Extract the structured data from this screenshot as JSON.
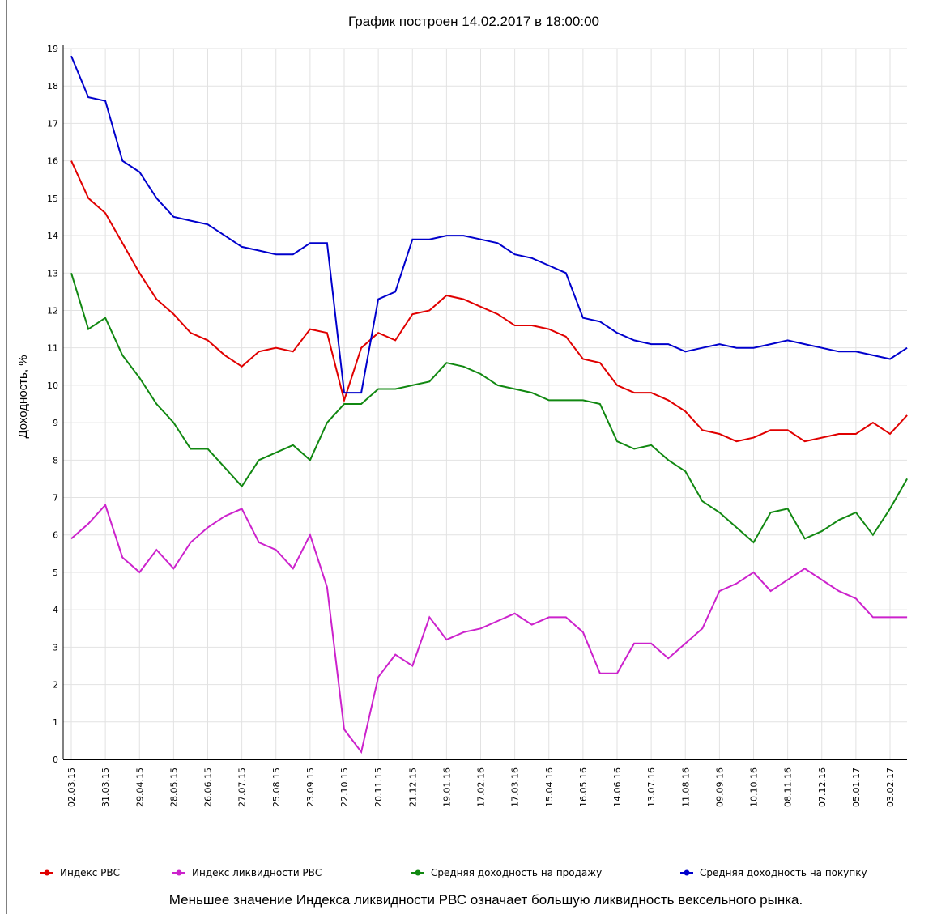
{
  "chart_data": {
    "type": "line",
    "subtitle": "График построен 14.02.2017 в 18:00:00",
    "y_label": "Доходность, %",
    "note": "Меньшее значение Индекса ликвидности РВС означает большую ликвидность вексельного рынка.",
    "categories": [
      "02.03.15",
      null,
      "31.03.15",
      null,
      "29.04.15",
      null,
      "28.05.15",
      null,
      "26.06.15",
      null,
      "27.07.15",
      null,
      "25.08.15",
      null,
      "23.09.15",
      null,
      "22.10.15",
      null,
      "20.11.15",
      null,
      "21.12.15",
      null,
      "19.01.16",
      null,
      "17.02.16",
      null,
      "17.03.16",
      null,
      "15.04.16",
      null,
      "16.05.16",
      null,
      "14.06.16",
      null,
      "13.07.16",
      null,
      "11.08.16",
      null,
      "09.09.16",
      null,
      "10.10.16",
      null,
      "08.11.16",
      null,
      "07.12.16",
      null,
      "05.01.17",
      null,
      "03.02.17",
      null
    ],
    "series": [
      {
        "name": "Индекс РВС",
        "color": "#e00000",
        "values": [
          16.0,
          15.0,
          14.6,
          13.8,
          13.0,
          12.3,
          11.9,
          11.4,
          11.2,
          10.8,
          10.5,
          10.9,
          11.0,
          10.9,
          11.5,
          11.4,
          9.6,
          11.0,
          11.4,
          11.2,
          11.9,
          12.0,
          12.4,
          12.3,
          12.1,
          11.9,
          11.6,
          11.6,
          11.5,
          11.3,
          10.7,
          10.6,
          10.0,
          9.8,
          9.8,
          9.6,
          9.3,
          8.8,
          8.7,
          8.5,
          8.6,
          8.8,
          8.8,
          8.5,
          8.6,
          8.7,
          8.7,
          9.0,
          8.7,
          9.2
        ]
      },
      {
        "name": "Индекс ликвидности РВС",
        "color": "#cc22cc",
        "values": [
          5.9,
          6.3,
          6.8,
          5.4,
          5.0,
          5.6,
          5.1,
          5.8,
          6.2,
          6.5,
          6.7,
          5.8,
          5.6,
          5.1,
          6.0,
          4.6,
          0.8,
          0.2,
          2.2,
          2.8,
          2.5,
          3.8,
          3.2,
          3.4,
          3.5,
          3.7,
          3.9,
          3.6,
          3.8,
          3.8,
          3.4,
          2.3,
          2.3,
          3.1,
          3.1,
          2.7,
          3.1,
          3.5,
          4.5,
          4.7,
          5.0,
          4.5,
          4.8,
          5.1,
          4.8,
          4.5,
          4.3,
          3.8,
          3.8,
          3.8
        ]
      },
      {
        "name": "Средняя доходность на продажу",
        "color": "#118811",
        "values": [
          13.0,
          11.5,
          11.8,
          10.8,
          10.2,
          9.5,
          9.0,
          8.3,
          8.3,
          7.8,
          7.3,
          8.0,
          8.2,
          8.4,
          8.0,
          9.0,
          9.5,
          9.5,
          9.9,
          9.9,
          10.0,
          10.1,
          10.6,
          10.5,
          10.3,
          10.0,
          9.9,
          9.8,
          9.6,
          9.6,
          9.6,
          9.5,
          8.5,
          8.3,
          8.4,
          8.0,
          7.7,
          6.9,
          6.6,
          6.2,
          5.8,
          6.6,
          6.7,
          5.9,
          6.1,
          6.4,
          6.6,
          6.0,
          6.7,
          7.5
        ]
      },
      {
        "name": "Средняя доходность на покупку",
        "color": "#0000cc",
        "values": [
          18.8,
          17.7,
          17.6,
          16.0,
          15.7,
          15.0,
          14.5,
          14.4,
          14.3,
          14.0,
          13.7,
          13.6,
          13.5,
          13.5,
          13.8,
          13.8,
          9.8,
          9.8,
          12.3,
          12.5,
          13.9,
          13.9,
          14.0,
          14.0,
          13.9,
          13.8,
          13.5,
          13.4,
          13.2,
          13.0,
          11.8,
          11.7,
          11.4,
          11.2,
          11.1,
          11.1,
          10.9,
          11.0,
          11.1,
          11.0,
          11.0,
          11.1,
          11.2,
          11.1,
          11.0,
          10.9,
          10.9,
          10.8,
          10.7,
          11.0
        ]
      }
    ],
    "ylim": [
      0,
      19
    ],
    "yticks": [
      0,
      1,
      2,
      3,
      4,
      5,
      6,
      7,
      8,
      9,
      10,
      11,
      12,
      13,
      14,
      15,
      16,
      17,
      18,
      19
    ],
    "grid": true
  }
}
